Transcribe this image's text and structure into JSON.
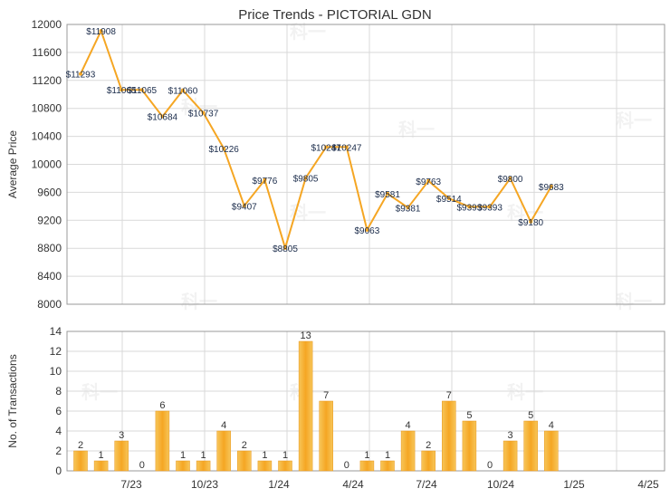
{
  "chart_data": [
    {
      "type": "line",
      "title": "Price Trends - PICTORIAL GDN",
      "ylabel": "Average Price",
      "ylim": [
        8000,
        12000
      ],
      "yticks": [
        8000,
        8400,
        8800,
        9200,
        9600,
        10000,
        10400,
        10800,
        11200,
        11600,
        12000
      ],
      "series": [
        {
          "values": [
            11293,
            11908,
            11065,
            11065,
            10684,
            11060,
            10737,
            10226,
            9407,
            9776,
            8805,
            9805,
            10247,
            10247,
            9063,
            9581,
            9381,
            9763,
            9514,
            9393,
            9393,
            9800,
            9180,
            9683
          ],
          "labels": [
            "$11293",
            "$11908",
            "$11065",
            "$11065",
            "$10684",
            "$11060",
            "$10737",
            "$10226",
            "$9407",
            "$9776",
            "$8805",
            "$9805",
            "$10247",
            "$10247",
            "$9063",
            "$9581",
            "$9381",
            "$9763",
            "$9514",
            "$9393",
            "$9393",
            "$9800",
            "$9180",
            "$9683"
          ],
          "color": "#f5a623"
        }
      ],
      "grid": true
    },
    {
      "type": "bar",
      "ylabel": "No. of Transactions",
      "ylim": [
        0,
        14
      ],
      "yticks": [
        0,
        2,
        4,
        6,
        8,
        10,
        12,
        14
      ],
      "xtick_labels": [
        "7/23",
        "10/23",
        "1/24",
        "4/24",
        "7/24",
        "10/24",
        "1/25",
        "4/25"
      ],
      "values": [
        2,
        1,
        3,
        0,
        6,
        1,
        1,
        4,
        2,
        1,
        1,
        13,
        7,
        0,
        1,
        1,
        4,
        2,
        7,
        5,
        0,
        3,
        5,
        4
      ],
      "color": "#f5a623",
      "grid": true
    }
  ]
}
